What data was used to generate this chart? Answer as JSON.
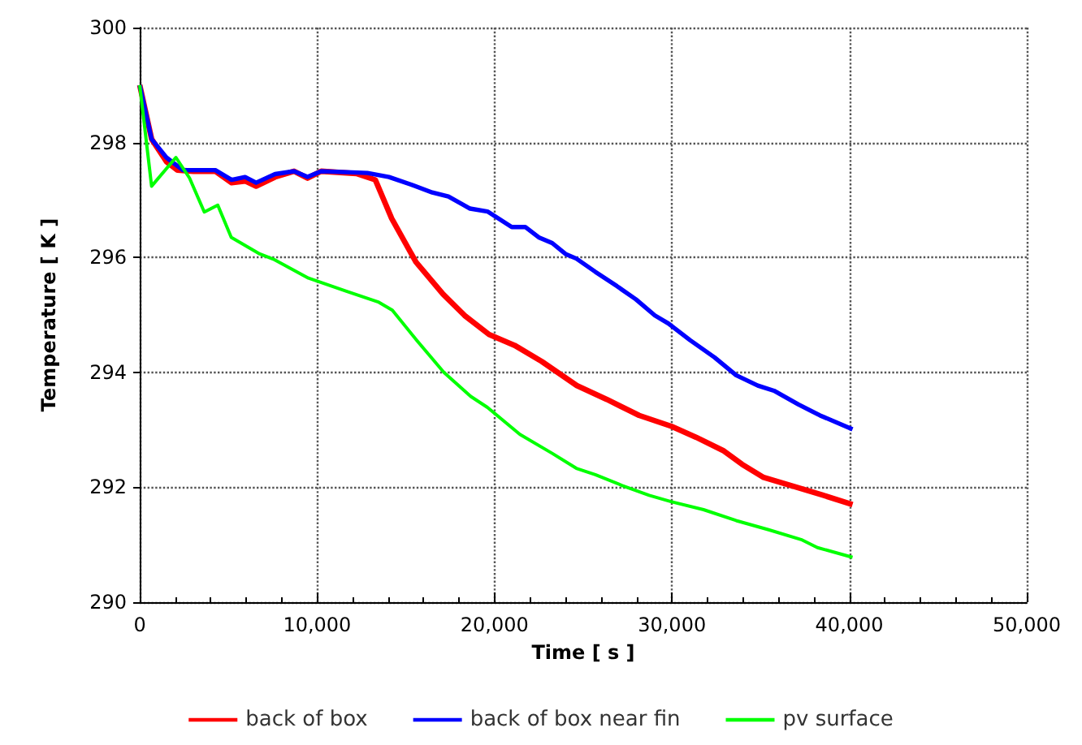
{
  "chart_data": {
    "type": "line",
    "xlabel": "Time [ s ]",
    "ylabel": "Temperature [ K ]",
    "xlim": [
      0,
      50000
    ],
    "xticks": [
      0,
      {
        "value": 10000,
        "label": "10,000"
      },
      {
        "value": 20000,
        "label": "20,000"
      },
      {
        "value": 30000,
        "label": "30,000"
      },
      {
        "value": 40000,
        "label": "40,000"
      },
      {
        "value": 50000,
        "label": "50,000"
      }
    ],
    "ylim": [
      290,
      300
    ],
    "yticks": [
      290,
      292,
      294,
      296,
      298,
      300
    ],
    "grid": true,
    "legend": "bottom",
    "marker": "none",
    "line_style": "solid",
    "series": [
      {
        "name": "back of box",
        "color": "#ff0000",
        "x": [
          0,
          670,
          1500,
          2120,
          3030,
          4260,
          5180,
          5940,
          6560,
          7630,
          8700,
          9460,
          10230,
          12210,
          13280,
          14200,
          15570,
          17100,
          18310,
          19690,
          21130,
          22660,
          24640,
          26320,
          28150,
          29980,
          31360,
          32880,
          33950,
          35170,
          36700,
          38530,
          40180
        ],
        "values": [
          299.0,
          298.06,
          297.67,
          297.52,
          297.5,
          297.5,
          297.3,
          297.33,
          297.24,
          297.4,
          297.5,
          297.38,
          297.5,
          297.46,
          297.35,
          296.68,
          295.92,
          295.36,
          294.99,
          294.66,
          294.47,
          294.19,
          293.77,
          293.53,
          293.25,
          293.06,
          292.87,
          292.64,
          292.4,
          292.17,
          292.03,
          291.86,
          291.7
        ]
      },
      {
        "name": "back of box near fin",
        "color": "#0000ff",
        "x": [
          0,
          670,
          1500,
          2430,
          4260,
          5180,
          5940,
          6560,
          7630,
          8700,
          9460,
          10230,
          12830,
          14050,
          15270,
          16490,
          17400,
          18620,
          19600,
          20970,
          21730,
          22490,
          23250,
          24000,
          24610,
          25680,
          26900,
          27970,
          29040,
          29800,
          31020,
          32400,
          33620,
          34840,
          35750,
          37130,
          38350,
          40180
        ],
        "values": [
          299.0,
          298.06,
          297.74,
          297.52,
          297.52,
          297.35,
          297.4,
          297.3,
          297.45,
          297.5,
          297.4,
          297.5,
          297.47,
          297.4,
          297.27,
          297.13,
          297.06,
          296.85,
          296.8,
          296.53,
          296.53,
          296.35,
          296.25,
          296.06,
          295.98,
          295.75,
          295.5,
          295.27,
          294.99,
          294.85,
          294.56,
          294.26,
          293.95,
          293.77,
          293.68,
          293.44,
          293.25,
          293.01
        ]
      },
      {
        "name": "pv surface",
        "color": "#00ff00",
        "x": [
          0,
          670,
          2040,
          2810,
          3640,
          4400,
          5160,
          6770,
          7530,
          9510,
          11650,
          13480,
          14240,
          15610,
          17140,
          18660,
          19600,
          21430,
          23250,
          24610,
          25680,
          27200,
          28720,
          29950,
          31780,
          33620,
          35450,
          37280,
          38200,
          40180
        ],
        "values": [
          299.0,
          297.24,
          297.74,
          297.38,
          296.79,
          296.91,
          296.35,
          296.06,
          295.97,
          295.64,
          295.41,
          295.22,
          295.08,
          294.56,
          294.0,
          293.58,
          293.39,
          292.92,
          292.59,
          292.33,
          292.22,
          292.03,
          291.86,
          291.75,
          291.61,
          291.42,
          291.26,
          291.09,
          290.95,
          290.78
        ]
      }
    ]
  }
}
